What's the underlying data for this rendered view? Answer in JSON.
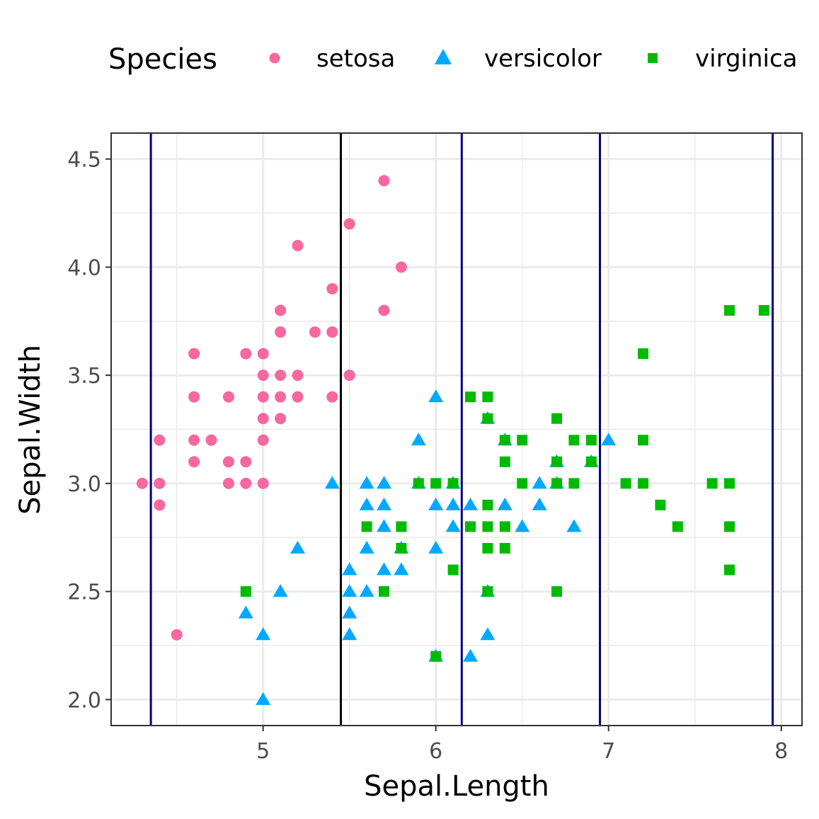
{
  "chart_data": {
    "type": "scatter",
    "xlabel": "Sepal.Length",
    "ylabel": "Sepal.Width",
    "xlim": [
      4.12,
      8.12
    ],
    "ylim": [
      1.88,
      4.62
    ],
    "x_ticks": [
      "5",
      "6",
      "7",
      "8"
    ],
    "y_ticks": [
      "2.0",
      "2.5",
      "3.0",
      "3.5",
      "4.0",
      "4.5"
    ],
    "grid": true,
    "legend": {
      "title": "Species",
      "position": "top"
    },
    "vertical_lines": [
      {
        "x": 4.35,
        "color": "#00008b"
      },
      {
        "x": 5.45,
        "color": "#000000"
      },
      {
        "x": 6.15,
        "color": "#00008b"
      },
      {
        "x": 6.95,
        "color": "#00008b"
      },
      {
        "x": 7.95,
        "color": "#00008b"
      }
    ],
    "series": [
      {
        "name": "setosa",
        "color": "#f8679f",
        "shape": "circle",
        "points": [
          [
            5.7,
            4.4
          ],
          [
            5.5,
            4.2
          ],
          [
            5.2,
            4.1
          ],
          [
            5.8,
            4.0
          ],
          [
            5.4,
            3.9
          ],
          [
            5.1,
            3.8
          ],
          [
            5.7,
            3.8
          ],
          [
            5.1,
            3.7
          ],
          [
            5.3,
            3.7
          ],
          [
            5.4,
            3.7
          ],
          [
            4.6,
            3.6
          ],
          [
            4.9,
            3.6
          ],
          [
            5.0,
            3.6
          ],
          [
            5.0,
            3.5
          ],
          [
            5.1,
            3.5
          ],
          [
            5.2,
            3.5
          ],
          [
            5.5,
            3.5
          ],
          [
            4.6,
            3.4
          ],
          [
            4.8,
            3.4
          ],
          [
            5.0,
            3.4
          ],
          [
            5.1,
            3.4
          ],
          [
            5.2,
            3.4
          ],
          [
            5.4,
            3.4
          ],
          [
            5.0,
            3.3
          ],
          [
            5.1,
            3.3
          ],
          [
            4.4,
            3.2
          ],
          [
            4.6,
            3.2
          ],
          [
            4.7,
            3.2
          ],
          [
            5.0,
            3.2
          ],
          [
            4.6,
            3.1
          ],
          [
            4.8,
            3.1
          ],
          [
            4.9,
            3.1
          ],
          [
            4.3,
            3.0
          ],
          [
            4.4,
            3.0
          ],
          [
            4.8,
            3.0
          ],
          [
            4.9,
            3.0
          ],
          [
            5.0,
            3.0
          ],
          [
            4.4,
            2.9
          ],
          [
            4.5,
            2.3
          ]
        ]
      },
      {
        "name": "versicolor",
        "color": "#00a9ff",
        "shape": "triangle",
        "points": [
          [
            6.0,
            3.4
          ],
          [
            6.3,
            3.3
          ],
          [
            5.9,
            3.2
          ],
          [
            6.4,
            3.2
          ],
          [
            7.0,
            3.2
          ],
          [
            6.7,
            3.1
          ],
          [
            6.9,
            3.1
          ],
          [
            5.4,
            3.0
          ],
          [
            5.6,
            3.0
          ],
          [
            5.7,
            3.0
          ],
          [
            5.9,
            3.0
          ],
          [
            6.1,
            3.0
          ],
          [
            6.6,
            3.0
          ],
          [
            6.7,
            3.0
          ],
          [
            5.6,
            2.9
          ],
          [
            5.7,
            2.9
          ],
          [
            6.0,
            2.9
          ],
          [
            6.1,
            2.9
          ],
          [
            6.2,
            2.9
          ],
          [
            6.4,
            2.9
          ],
          [
            6.6,
            2.9
          ],
          [
            5.7,
            2.8
          ],
          [
            6.1,
            2.8
          ],
          [
            6.5,
            2.8
          ],
          [
            6.8,
            2.8
          ],
          [
            5.2,
            2.7
          ],
          [
            5.6,
            2.7
          ],
          [
            5.8,
            2.7
          ],
          [
            6.0,
            2.7
          ],
          [
            5.5,
            2.6
          ],
          [
            5.7,
            2.6
          ],
          [
            5.8,
            2.6
          ],
          [
            5.1,
            2.5
          ],
          [
            5.5,
            2.5
          ],
          [
            5.6,
            2.5
          ],
          [
            6.3,
            2.5
          ],
          [
            4.9,
            2.4
          ],
          [
            5.5,
            2.4
          ],
          [
            5.0,
            2.3
          ],
          [
            5.5,
            2.3
          ],
          [
            6.3,
            2.3
          ],
          [
            6.0,
            2.2
          ],
          [
            6.2,
            2.2
          ],
          [
            5.0,
            2.0
          ]
        ]
      },
      {
        "name": "virginica",
        "color": "#00ba00",
        "shape": "square",
        "points": [
          [
            7.7,
            3.8
          ],
          [
            7.9,
            3.8
          ],
          [
            7.2,
            3.6
          ],
          [
            6.2,
            3.4
          ],
          [
            6.3,
            3.4
          ],
          [
            6.3,
            3.3
          ],
          [
            6.7,
            3.3
          ],
          [
            6.4,
            3.2
          ],
          [
            6.5,
            3.2
          ],
          [
            6.8,
            3.2
          ],
          [
            6.9,
            3.2
          ],
          [
            7.2,
            3.2
          ],
          [
            6.4,
            3.1
          ],
          [
            6.7,
            3.1
          ],
          [
            6.9,
            3.1
          ],
          [
            5.9,
            3.0
          ],
          [
            6.0,
            3.0
          ],
          [
            6.1,
            3.0
          ],
          [
            6.5,
            3.0
          ],
          [
            6.7,
            3.0
          ],
          [
            6.8,
            3.0
          ],
          [
            7.1,
            3.0
          ],
          [
            7.2,
            3.0
          ],
          [
            7.6,
            3.0
          ],
          [
            7.7,
            3.0
          ],
          [
            6.3,
            2.9
          ],
          [
            7.3,
            2.9
          ],
          [
            5.6,
            2.8
          ],
          [
            5.8,
            2.8
          ],
          [
            6.2,
            2.8
          ],
          [
            6.3,
            2.8
          ],
          [
            6.4,
            2.8
          ],
          [
            7.4,
            2.8
          ],
          [
            7.7,
            2.8
          ],
          [
            5.8,
            2.7
          ],
          [
            6.3,
            2.7
          ],
          [
            6.4,
            2.7
          ],
          [
            6.1,
            2.6
          ],
          [
            7.7,
            2.6
          ],
          [
            4.9,
            2.5
          ],
          [
            5.7,
            2.5
          ],
          [
            6.3,
            2.5
          ],
          [
            6.7,
            2.5
          ],
          [
            6.0,
            2.2
          ]
        ]
      }
    ]
  }
}
